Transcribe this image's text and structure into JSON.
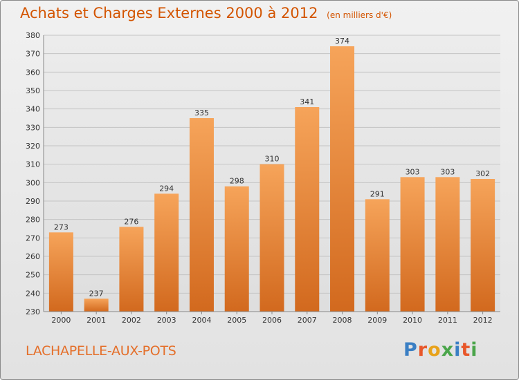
{
  "chart_data": {
    "type": "bar",
    "title": "Achats et Charges Externes 2000 à 2012",
    "subtitle": "(en milliers d'€)",
    "categories": [
      "2000",
      "2001",
      "2002",
      "2003",
      "2004",
      "2005",
      "2006",
      "2007",
      "2008",
      "2009",
      "2010",
      "2011",
      "2012"
    ],
    "values": [
      273,
      237,
      276,
      294,
      335,
      298,
      310,
      341,
      374,
      291,
      303,
      303,
      302
    ],
    "ylim": [
      230,
      380
    ],
    "yticks": [
      230,
      240,
      250,
      260,
      270,
      280,
      290,
      300,
      310,
      320,
      330,
      340,
      350,
      360,
      370,
      380
    ],
    "grid": true,
    "bar_colors": {
      "top": "#f6a45a",
      "bottom": "#d2691e"
    },
    "title_color": "#d35400"
  },
  "footer": {
    "town": "LACHAPELLE-AUX-POTS",
    "logo": "Proxiti",
    "logo_colors": [
      "#3a7fc4",
      "#e8572a",
      "#e8a21a",
      "#4aa54a",
      "#3a7fc4",
      "#e8572a",
      "#4aa54a"
    ]
  }
}
